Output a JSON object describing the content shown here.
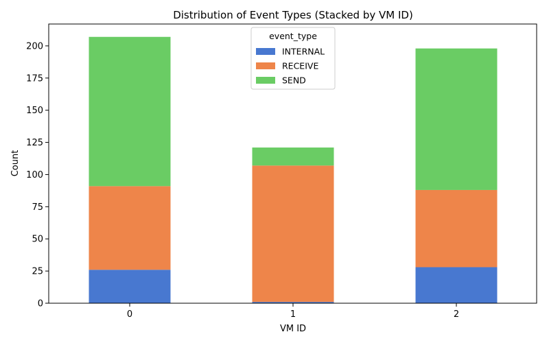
{
  "chart_data": {
    "type": "bar",
    "stacked": true,
    "title": "Distribution of Event Types (Stacked by VM ID)",
    "xlabel": "VM ID",
    "ylabel": "Count",
    "categories": [
      "0",
      "1",
      "2"
    ],
    "ylim": [
      0,
      217
    ],
    "yticks": [
      0,
      25,
      50,
      75,
      100,
      125,
      150,
      175,
      200
    ],
    "legend_title": "event_type",
    "legend_position": "top-center",
    "grid": false,
    "series": [
      {
        "name": "INTERNAL",
        "color": "#4878d0",
        "values": [
          26,
          1,
          28
        ]
      },
      {
        "name": "RECEIVE",
        "color": "#ee854a",
        "values": [
          65,
          106,
          60
        ]
      },
      {
        "name": "SEND",
        "color": "#6acc64",
        "values": [
          116,
          14,
          110
        ]
      }
    ]
  }
}
